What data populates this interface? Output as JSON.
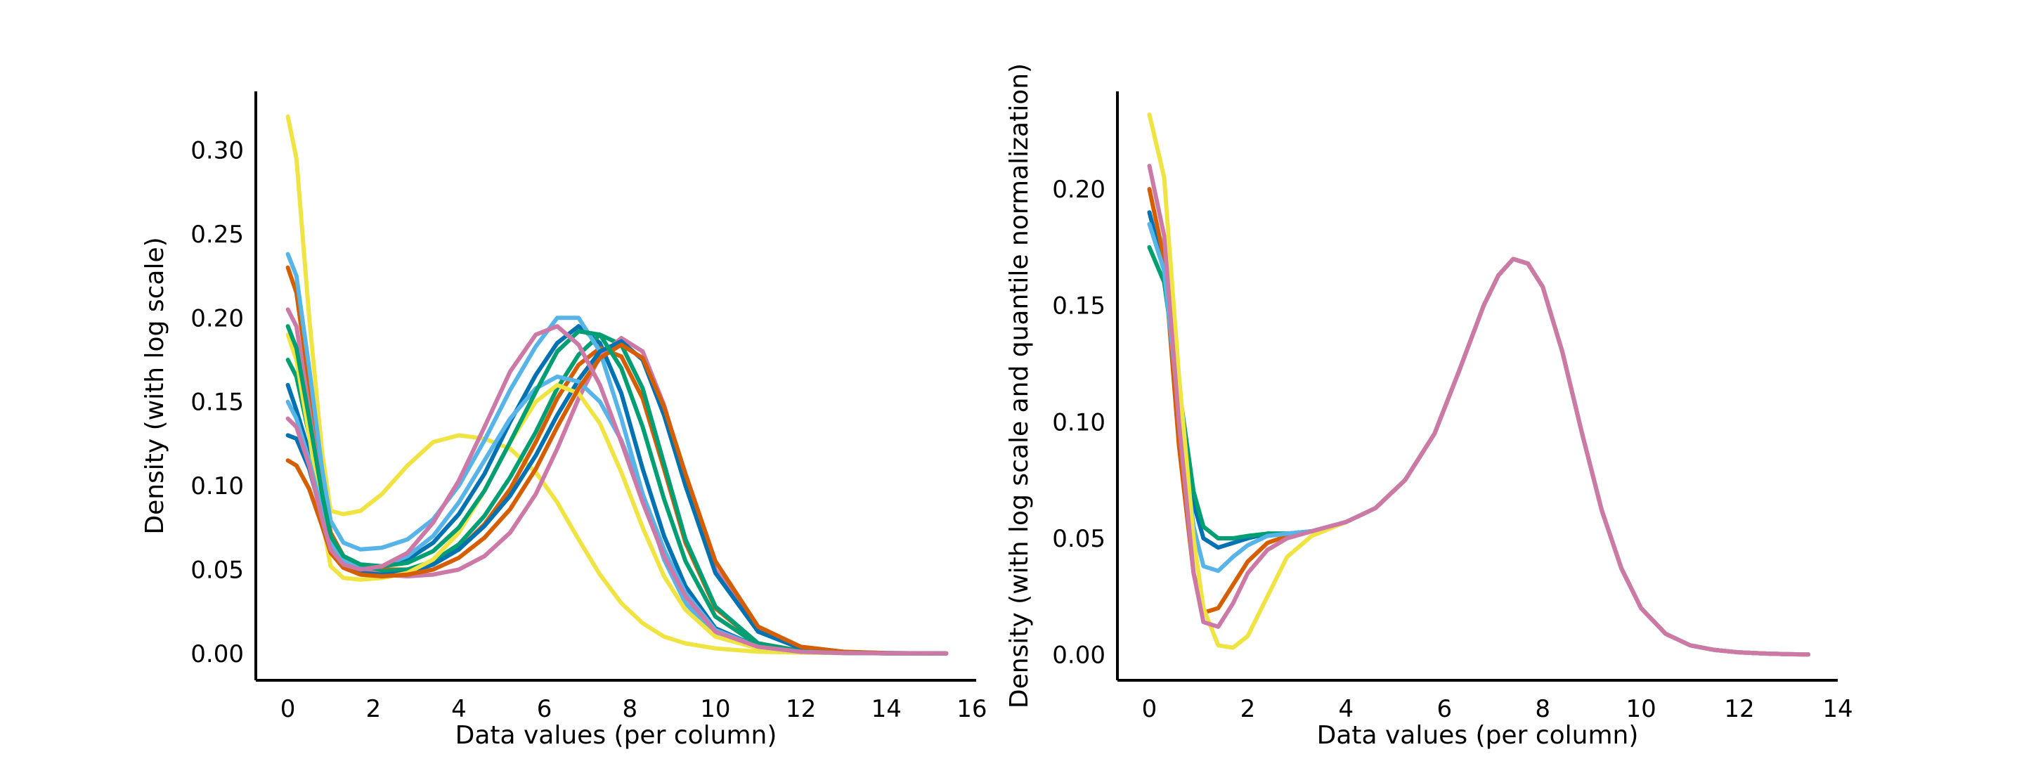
{
  "chart_data": [
    {
      "type": "line",
      "title": "",
      "xlabel": "Data values (per column)",
      "ylabel": "Density (with log scale)",
      "xlim": [
        -0.75,
        16.1
      ],
      "ylim": [
        -0.016,
        0.335
      ],
      "xticks": [
        "0",
        "2",
        "4",
        "6",
        "8",
        "10",
        "12",
        "14",
        "16"
      ],
      "yticks": [
        "0.00",
        "0.05",
        "0.10",
        "0.15",
        "0.20",
        "0.25",
        "0.30"
      ],
      "xtick_values": [
        0,
        2,
        4,
        6,
        8,
        10,
        12,
        14,
        16
      ],
      "ytick_values": [
        0.0,
        0.05,
        0.1,
        0.15,
        0.2,
        0.25,
        0.3
      ],
      "grid": false,
      "legend": "none",
      "palette": [
        "#0072B2",
        "#D55E00",
        "#009E73",
        "#F0E442",
        "#56B4E9",
        "#CC79A7"
      ],
      "series": [
        {
          "color": "#F0E442",
          "x": [
            0,
            0.2,
            0.5,
            0.8,
            1.0,
            1.3,
            1.7,
            2.2,
            2.8,
            3.4,
            4.0,
            4.6,
            5.2,
            5.8,
            6.3,
            6.8,
            7.3,
            7.8,
            8.3,
            8.8,
            9.3,
            10.0,
            11.0,
            12.0,
            13.0,
            14.0,
            15.4
          ],
          "y": [
            0.32,
            0.295,
            0.2,
            0.12,
            0.085,
            0.083,
            0.085,
            0.095,
            0.112,
            0.126,
            0.13,
            0.128,
            0.122,
            0.108,
            0.09,
            0.068,
            0.047,
            0.03,
            0.018,
            0.01,
            0.006,
            0.003,
            0.001,
            0.0005,
            0.0002,
            0.0001,
            0.0
          ]
        },
        {
          "color": "#0072B2",
          "x": [
            0,
            0.2,
            0.5,
            0.8,
            1.0,
            1.3,
            1.7,
            2.2,
            2.8,
            3.4,
            4.0,
            4.6,
            5.2,
            5.8,
            6.3,
            6.8,
            7.3,
            7.8,
            8.3,
            8.8,
            9.3,
            10.0,
            11.0,
            12.0,
            13.0,
            14.0,
            15.4
          ],
          "y": [
            0.16,
            0.145,
            0.12,
            0.09,
            0.07,
            0.058,
            0.053,
            0.052,
            0.056,
            0.066,
            0.083,
            0.107,
            0.138,
            0.166,
            0.185,
            0.195,
            0.185,
            0.155,
            0.11,
            0.07,
            0.04,
            0.015,
            0.004,
            0.001,
            0.0004,
            0.0001,
            0.0
          ]
        },
        {
          "color": "#D55E00",
          "x": [
            0,
            0.2,
            0.5,
            0.8,
            1.0,
            1.3,
            1.7,
            2.2,
            2.8,
            3.4,
            4.0,
            4.6,
            5.2,
            5.8,
            6.3,
            6.8,
            7.3,
            7.8,
            8.3,
            8.8,
            9.3,
            10.0,
            11.0,
            12.0,
            13.0,
            14.0,
            15.4
          ],
          "y": [
            0.23,
            0.215,
            0.16,
            0.1,
            0.072,
            0.058,
            0.052,
            0.05,
            0.05,
            0.054,
            0.062,
            0.077,
            0.098,
            0.126,
            0.152,
            0.172,
            0.182,
            0.177,
            0.152,
            0.11,
            0.066,
            0.027,
            0.006,
            0.0015,
            0.0004,
            0.0001,
            0.0
          ]
        },
        {
          "color": "#009E73",
          "x": [
            0,
            0.2,
            0.5,
            0.8,
            1.0,
            1.3,
            1.7,
            2.2,
            2.8,
            3.4,
            4.0,
            4.6,
            5.2,
            5.8,
            6.3,
            6.8,
            7.3,
            7.8,
            8.3,
            8.8,
            9.3,
            10.0,
            11.0,
            12.0,
            13.0,
            14.0,
            15.4
          ],
          "y": [
            0.175,
            0.165,
            0.13,
            0.09,
            0.068,
            0.056,
            0.05,
            0.049,
            0.05,
            0.055,
            0.065,
            0.082,
            0.105,
            0.132,
            0.158,
            0.178,
            0.19,
            0.184,
            0.158,
            0.113,
            0.068,
            0.028,
            0.006,
            0.0015,
            0.0004,
            0.0001,
            0.0
          ]
        },
        {
          "color": "#56B4E9",
          "x": [
            0,
            0.2,
            0.5,
            0.8,
            1.0,
            1.3,
            1.7,
            2.2,
            2.8,
            3.4,
            4.0,
            4.6,
            5.2,
            5.8,
            6.3,
            6.8,
            7.3,
            7.8,
            8.3,
            8.8,
            9.3,
            10.0,
            11.0,
            12.0,
            13.0,
            14.0,
            15.4
          ],
          "y": [
            0.238,
            0.225,
            0.17,
            0.11,
            0.079,
            0.066,
            0.062,
            0.063,
            0.068,
            0.08,
            0.1,
            0.127,
            0.157,
            0.183,
            0.2,
            0.2,
            0.18,
            0.14,
            0.095,
            0.056,
            0.03,
            0.011,
            0.003,
            0.0008,
            0.0002,
            0.0001,
            0.0
          ]
        },
        {
          "color": "#CC79A7",
          "x": [
            0,
            0.2,
            0.5,
            0.8,
            1.0,
            1.3,
            1.7,
            2.2,
            2.8,
            3.4,
            4.0,
            4.6,
            5.2,
            5.8,
            6.3,
            6.8,
            7.3,
            7.8,
            8.3,
            8.8,
            9.3,
            10.0,
            11.0,
            12.0,
            13.0,
            14.0,
            15.4
          ],
          "y": [
            0.205,
            0.195,
            0.145,
            0.095,
            0.07,
            0.056,
            0.05,
            0.047,
            0.046,
            0.047,
            0.05,
            0.058,
            0.072,
            0.095,
            0.122,
            0.152,
            0.177,
            0.188,
            0.18,
            0.148,
            0.105,
            0.05,
            0.014,
            0.003,
            0.0008,
            0.0002,
            0.0
          ]
        },
        {
          "color": "#0072B2",
          "x": [
            0,
            0.2,
            0.5,
            0.8,
            1.0,
            1.3,
            1.7,
            2.2,
            2.8,
            3.4,
            4.0,
            4.6,
            5.2,
            5.8,
            6.3,
            6.8,
            7.3,
            7.8,
            8.3,
            8.8,
            9.3,
            10.0,
            11.0,
            12.0,
            13.0,
            14.0,
            15.4
          ],
          "y": [
            0.13,
            0.128,
            0.11,
            0.082,
            0.064,
            0.053,
            0.048,
            0.047,
            0.048,
            0.053,
            0.062,
            0.076,
            0.094,
            0.118,
            0.142,
            0.163,
            0.18,
            0.186,
            0.175,
            0.142,
            0.1,
            0.048,
            0.013,
            0.003,
            0.0008,
            0.0002,
            0.0
          ]
        },
        {
          "color": "#F0E442",
          "x": [
            0,
            0.2,
            0.5,
            0.8,
            1.0,
            1.3,
            1.7,
            2.2,
            2.8,
            3.4,
            4.0,
            4.6,
            5.2,
            5.8,
            6.3,
            6.8,
            7.3,
            7.8,
            8.3,
            8.8,
            9.3,
            10.0,
            11.0,
            12.0,
            13.0,
            14.0,
            15.4
          ],
          "y": [
            0.19,
            0.175,
            0.13,
            0.08,
            0.052,
            0.045,
            0.044,
            0.045,
            0.048,
            0.056,
            0.072,
            0.097,
            0.126,
            0.15,
            0.16,
            0.155,
            0.137,
            0.108,
            0.075,
            0.046,
            0.026,
            0.01,
            0.003,
            0.0008,
            0.0002,
            0.0001,
            0.0
          ]
        },
        {
          "color": "#56B4E9",
          "x": [
            0,
            0.2,
            0.5,
            0.8,
            1.0,
            1.3,
            1.7,
            2.2,
            2.8,
            3.4,
            4.0,
            4.6,
            5.2,
            5.8,
            6.3,
            6.8,
            7.3,
            7.8,
            8.3,
            8.8,
            9.3,
            10.0,
            11.0,
            12.0,
            13.0,
            14.0,
            15.4
          ],
          "y": [
            0.15,
            0.14,
            0.115,
            0.085,
            0.066,
            0.055,
            0.051,
            0.052,
            0.058,
            0.07,
            0.09,
            0.115,
            0.14,
            0.158,
            0.165,
            0.162,
            0.15,
            0.127,
            0.095,
            0.062,
            0.036,
            0.014,
            0.004,
            0.001,
            0.0003,
            0.0001,
            0.0
          ]
        },
        {
          "color": "#D55E00",
          "x": [
            0,
            0.2,
            0.5,
            0.8,
            1.0,
            1.3,
            1.7,
            2.2,
            2.8,
            3.4,
            4.0,
            4.6,
            5.2,
            5.8,
            6.3,
            6.8,
            7.3,
            7.8,
            8.3,
            8.8,
            9.3,
            10.0,
            11.0,
            12.0,
            13.0,
            14.0,
            15.4
          ],
          "y": [
            0.115,
            0.112,
            0.098,
            0.076,
            0.06,
            0.051,
            0.047,
            0.046,
            0.047,
            0.05,
            0.057,
            0.069,
            0.086,
            0.11,
            0.135,
            0.158,
            0.176,
            0.184,
            0.176,
            0.147,
            0.107,
            0.055,
            0.016,
            0.004,
            0.001,
            0.0002,
            0.0
          ]
        },
        {
          "color": "#009E73",
          "x": [
            0,
            0.2,
            0.5,
            0.8,
            1.0,
            1.3,
            1.7,
            2.2,
            2.8,
            3.4,
            4.0,
            4.6,
            5.2,
            5.8,
            6.3,
            6.8,
            7.3,
            7.8,
            8.3,
            8.8,
            9.3,
            10.0,
            11.0,
            12.0,
            13.0,
            14.0,
            15.4
          ],
          "y": [
            0.195,
            0.182,
            0.14,
            0.095,
            0.07,
            0.058,
            0.053,
            0.052,
            0.054,
            0.061,
            0.075,
            0.097,
            0.126,
            0.156,
            0.18,
            0.192,
            0.19,
            0.17,
            0.135,
            0.092,
            0.055,
            0.022,
            0.005,
            0.0012,
            0.0003,
            0.0001,
            0.0
          ]
        },
        {
          "color": "#CC79A7",
          "x": [
            0,
            0.2,
            0.5,
            0.8,
            1.0,
            1.3,
            1.7,
            2.2,
            2.8,
            3.4,
            4.0,
            4.6,
            5.2,
            5.8,
            6.3,
            6.8,
            7.3,
            7.8,
            8.3,
            8.8,
            9.3,
            10.0,
            11.0,
            12.0,
            13.0,
            14.0,
            15.4
          ],
          "y": [
            0.14,
            0.135,
            0.112,
            0.08,
            0.062,
            0.053,
            0.05,
            0.052,
            0.06,
            0.078,
            0.103,
            0.135,
            0.168,
            0.19,
            0.195,
            0.184,
            0.16,
            0.126,
            0.09,
            0.058,
            0.034,
            0.013,
            0.004,
            0.001,
            0.0003,
            0.0001,
            0.0
          ]
        }
      ]
    },
    {
      "type": "line",
      "title": "",
      "xlabel": "Data values (per column)",
      "ylabel": "Density (with log scale and quantile normalization)",
      "xlim": [
        -0.65,
        14.0
      ],
      "ylim": [
        -0.011,
        0.242
      ],
      "xticks": [
        "0",
        "2",
        "4",
        "6",
        "8",
        "10",
        "12",
        "14"
      ],
      "yticks": [
        "0.00",
        "0.05",
        "0.10",
        "0.15",
        "0.20"
      ],
      "xtick_values": [
        0,
        2,
        4,
        6,
        8,
        10,
        12,
        14
      ],
      "ytick_values": [
        0.0,
        0.05,
        0.1,
        0.15,
        0.2
      ],
      "grid": false,
      "legend": "none",
      "palette": [
        "#0072B2",
        "#D55E00",
        "#009E73",
        "#F0E442",
        "#56B4E9",
        "#CC79A7"
      ],
      "shared_x": [
        0,
        0.3,
        0.6,
        0.9,
        1.1,
        1.4,
        1.7,
        2.0,
        2.4,
        2.8,
        3.3,
        4.0,
        4.6,
        5.2,
        5.8,
        6.3,
        6.8,
        7.1,
        7.4,
        7.7,
        8.0,
        8.4,
        8.8,
        9.2,
        9.6,
        10.0,
        10.5,
        11.0,
        11.5,
        12.0,
        12.5,
        13.0,
        13.4
      ],
      "series": [
        {
          "color": "#0072B2",
          "y": [
            0.19,
            0.165,
            0.11,
            0.065,
            0.05,
            0.046,
            0.048,
            0.05,
            0.052,
            0.052,
            0.053,
            0.057,
            0.063,
            0.075,
            0.095,
            0.122,
            0.15,
            0.163,
            0.17,
            0.168,
            0.158,
            0.13,
            0.095,
            0.062,
            0.037,
            0.02,
            0.009,
            0.004,
            0.002,
            0.001,
            0.0005,
            0.0002,
            0.0001
          ]
        },
        {
          "color": "#D55E00",
          "y": [
            0.2,
            0.17,
            0.09,
            0.035,
            0.018,
            0.02,
            0.03,
            0.04,
            0.048,
            0.051,
            0.053,
            0.057,
            0.063,
            0.075,
            0.095,
            0.122,
            0.15,
            0.163,
            0.17,
            0.168,
            0.158,
            0.13,
            0.095,
            0.062,
            0.037,
            0.02,
            0.009,
            0.004,
            0.002,
            0.001,
            0.0005,
            0.0002,
            0.0001
          ]
        },
        {
          "color": "#009E73",
          "y": [
            0.175,
            0.16,
            0.115,
            0.07,
            0.055,
            0.05,
            0.05,
            0.051,
            0.052,
            0.052,
            0.053,
            0.057,
            0.063,
            0.075,
            0.095,
            0.122,
            0.15,
            0.163,
            0.17,
            0.168,
            0.158,
            0.13,
            0.095,
            0.062,
            0.037,
            0.02,
            0.009,
            0.004,
            0.002,
            0.001,
            0.0005,
            0.0002,
            0.0001
          ]
        },
        {
          "color": "#56B4E9",
          "y": [
            0.185,
            0.165,
            0.105,
            0.055,
            0.038,
            0.036,
            0.042,
            0.047,
            0.051,
            0.052,
            0.053,
            0.057,
            0.063,
            0.075,
            0.095,
            0.122,
            0.15,
            0.163,
            0.17,
            0.168,
            0.158,
            0.13,
            0.095,
            0.062,
            0.037,
            0.02,
            0.009,
            0.004,
            0.002,
            0.001,
            0.0005,
            0.0002,
            0.0001
          ]
        },
        {
          "color": "#F0E442",
          "y": [
            0.232,
            0.205,
            0.12,
            0.05,
            0.02,
            0.004,
            0.003,
            0.008,
            0.025,
            0.042,
            0.051,
            0.057,
            0.063,
            0.075,
            0.095,
            0.122,
            0.15,
            0.163,
            0.17,
            0.168,
            0.158,
            0.13,
            0.095,
            0.062,
            0.037,
            0.02,
            0.009,
            0.004,
            0.002,
            0.001,
            0.0005,
            0.0002,
            0.0001
          ]
        },
        {
          "color": "#CC79A7",
          "y": [
            0.21,
            0.18,
            0.1,
            0.035,
            0.014,
            0.012,
            0.022,
            0.035,
            0.045,
            0.05,
            0.053,
            0.057,
            0.063,
            0.075,
            0.095,
            0.122,
            0.15,
            0.163,
            0.17,
            0.168,
            0.158,
            0.13,
            0.095,
            0.062,
            0.037,
            0.02,
            0.009,
            0.004,
            0.002,
            0.001,
            0.0005,
            0.0002,
            0.0001
          ]
        }
      ]
    }
  ]
}
